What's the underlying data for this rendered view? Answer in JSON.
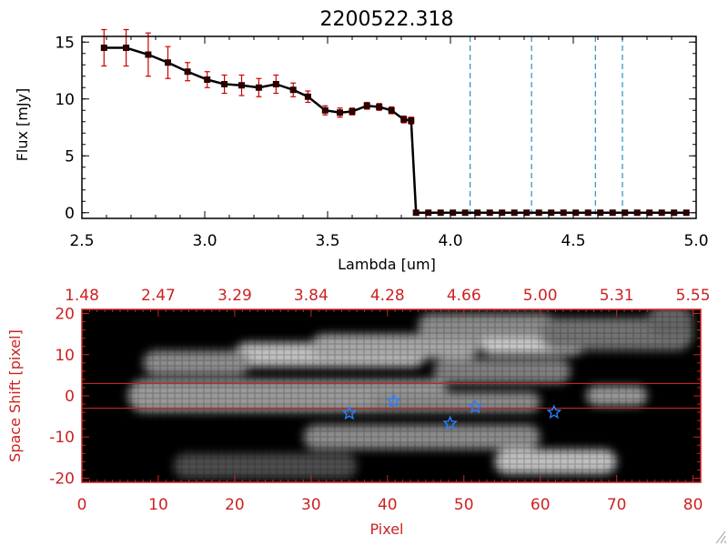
{
  "title": "2200522.318",
  "colors": {
    "axis_top": "#000000",
    "axis_bottom": "#cc2222",
    "spectrum_line": "#000000",
    "error_bars": "#cc0000",
    "vertical_dashes": "#2a8fbf",
    "stars": "#2a7fff",
    "extraction_lines": "#cc2222"
  },
  "chart_data": [
    {
      "type": "line",
      "title": "2200522.318",
      "xlabel": "Lambda [um]",
      "ylabel": "Flux [mJy]",
      "xlim": [
        2.5,
        5.0
      ],
      "ylim": [
        -0.5,
        15.5
      ],
      "xticks": [
        2.5,
        3.0,
        3.5,
        4.0,
        4.5,
        5.0
      ],
      "xtick_labels": [
        "2.5",
        "3.0",
        "3.5",
        "4.0",
        "4.5",
        "5.0"
      ],
      "yticks": [
        0,
        5,
        10,
        15
      ],
      "ytick_labels": [
        "0",
        "5",
        "10",
        "15"
      ],
      "grid": false,
      "series": [
        {
          "x": [
            2.59,
            2.68,
            2.77,
            2.85,
            2.93,
            3.01,
            3.08,
            3.15,
            3.22,
            3.29,
            3.36,
            3.42,
            3.49,
            3.55,
            3.6,
            3.66,
            3.71,
            3.76,
            3.81,
            3.84,
            3.86,
            3.91,
            3.96,
            4.01,
            4.06,
            4.11,
            4.16,
            4.21,
            4.26,
            4.31,
            4.36,
            4.41,
            4.46,
            4.51,
            4.56,
            4.61,
            4.66,
            4.71,
            4.76,
            4.81,
            4.86,
            4.91,
            4.96
          ],
          "y": [
            14.5,
            14.5,
            13.9,
            13.2,
            12.4,
            11.7,
            11.3,
            11.2,
            11.0,
            11.3,
            10.8,
            10.2,
            9.0,
            8.8,
            8.9,
            9.4,
            9.3,
            9.0,
            8.2,
            8.1,
            0,
            0,
            0,
            0,
            0,
            0,
            0,
            0,
            0,
            0,
            0,
            0,
            0,
            0,
            0,
            0,
            0,
            0,
            0,
            0,
            0,
            0,
            0
          ],
          "yerr": [
            1.6,
            1.6,
            1.9,
            1.4,
            0.8,
            0.7,
            0.8,
            0.9,
            0.8,
            0.8,
            0.6,
            0.5,
            0.4,
            0.4,
            0.3,
            0.3,
            0.3,
            0.3,
            0.3,
            0.3,
            0,
            0,
            0,
            0,
            0,
            0,
            0,
            0,
            0,
            0,
            0,
            0,
            0,
            0,
            0,
            0,
            0,
            0,
            0,
            0,
            0,
            0,
            0
          ]
        }
      ],
      "vertical_dashed_lines_x": [
        4.08,
        4.33,
        4.59,
        4.7
      ]
    },
    {
      "type": "heatmap",
      "xlabel": "Pixel",
      "ylabel": "Space Shift [pixel]",
      "xlim": [
        0,
        81
      ],
      "ylim": [
        -21,
        21
      ],
      "xticks": [
        0,
        10,
        20,
        30,
        40,
        50,
        60,
        70,
        80
      ],
      "xtick_labels": [
        "0",
        "10",
        "20",
        "30",
        "40",
        "50",
        "60",
        "70",
        "80"
      ],
      "yticks": [
        20,
        10,
        0,
        -10,
        -20
      ],
      "ytick_labels": [
        "20",
        "10",
        "0",
        "-10",
        "-20"
      ],
      "top_axis_tick_labels": [
        "1.48",
        "2.47",
        "3.29",
        "3.84",
        "4.28",
        "4.66",
        "5.00",
        "5.31",
        "5.55"
      ],
      "extraction_band_y": [
        3,
        -3
      ],
      "star_markers": [
        {
          "x": 35,
          "y": -4.2
        },
        {
          "x": 40.8,
          "y": -1.3
        },
        {
          "x": 48.2,
          "y": -6.7
        },
        {
          "x": 51.5,
          "y": -2.7
        },
        {
          "x": 61.8,
          "y": -4.0
        }
      ],
      "emission_features": [
        {
          "x0": 10,
          "x1": 38,
          "y": 0,
          "width": 3,
          "intensity": 0.95
        },
        {
          "x0": 6,
          "x1": 48,
          "y": 0,
          "width": 4,
          "intensity": 0.6
        },
        {
          "x0": 38,
          "x1": 60,
          "y": -1.5,
          "width": 2.5,
          "intensity": 0.55
        },
        {
          "x0": 20,
          "x1": 45,
          "y": 10,
          "width": 3,
          "intensity": 0.75
        },
        {
          "x0": 30,
          "x1": 52,
          "y": 12,
          "width": 3,
          "intensity": 0.65
        },
        {
          "x0": 8,
          "x1": 22,
          "y": 8,
          "width": 3,
          "intensity": 0.55
        },
        {
          "x0": 52,
          "x1": 66,
          "y": 13,
          "width": 3,
          "intensity": 0.8
        },
        {
          "x0": 44,
          "x1": 62,
          "y": 17,
          "width": 3,
          "intensity": 0.55
        },
        {
          "x0": 60,
          "x1": 80,
          "y": 15,
          "width": 4,
          "intensity": 0.45
        },
        {
          "x0": 46,
          "x1": 64,
          "y": 6,
          "width": 3,
          "intensity": 0.5
        },
        {
          "x0": 29,
          "x1": 60,
          "y": -10,
          "width": 3,
          "intensity": 0.55
        },
        {
          "x0": 54,
          "x1": 70,
          "y": -16,
          "width": 3,
          "intensity": 0.75
        },
        {
          "x0": 12,
          "x1": 36,
          "y": -17,
          "width": 3,
          "intensity": 0.3
        },
        {
          "x0": 66,
          "x1": 74,
          "y": 0,
          "width": 2.5,
          "intensity": 0.6
        },
        {
          "x0": 74,
          "x1": 80,
          "y": 18,
          "width": 4,
          "intensity": 0.4
        }
      ]
    }
  ]
}
